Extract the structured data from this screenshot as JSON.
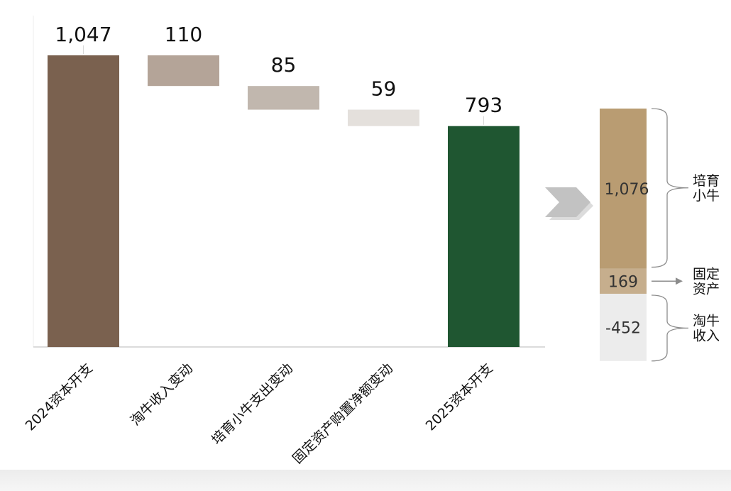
{
  "chart_data": [
    {
      "type": "waterfall",
      "categories": [
        "2024资本开支",
        "淘牛收入变动",
        "培育小牛支出变动",
        "固定资产购置净额变动",
        "2025资本开支"
      ],
      "values": [
        1047,
        -110,
        -85,
        -59,
        793
      ],
      "labels": [
        "1,047",
        "110",
        "85",
        "59",
        "793"
      ],
      "colors": [
        "#7a614f",
        "#b4a498",
        "#c1b7ae",
        "#e4e0dc",
        "#1f5631"
      ],
      "ylim": [
        0,
        1200
      ],
      "grid": false
    },
    {
      "type": "bar",
      "stacked": true,
      "segments": [
        {
          "name": "培育小牛",
          "value": 1076,
          "label": "1,076",
          "color": "#b99c72"
        },
        {
          "name": "固定资产",
          "value": 169,
          "label": "169",
          "color": "#c6ae8d"
        },
        {
          "name": "淘牛收入",
          "value": -452,
          "label": "-452",
          "color": "#ececec"
        }
      ],
      "annotations": [
        {
          "lines": [
            "培育",
            "小牛"
          ]
        },
        {
          "lines": [
            "固定",
            "资产"
          ]
        },
        {
          "lines": [
            "淘牛",
            "收入"
          ]
        }
      ]
    }
  ]
}
